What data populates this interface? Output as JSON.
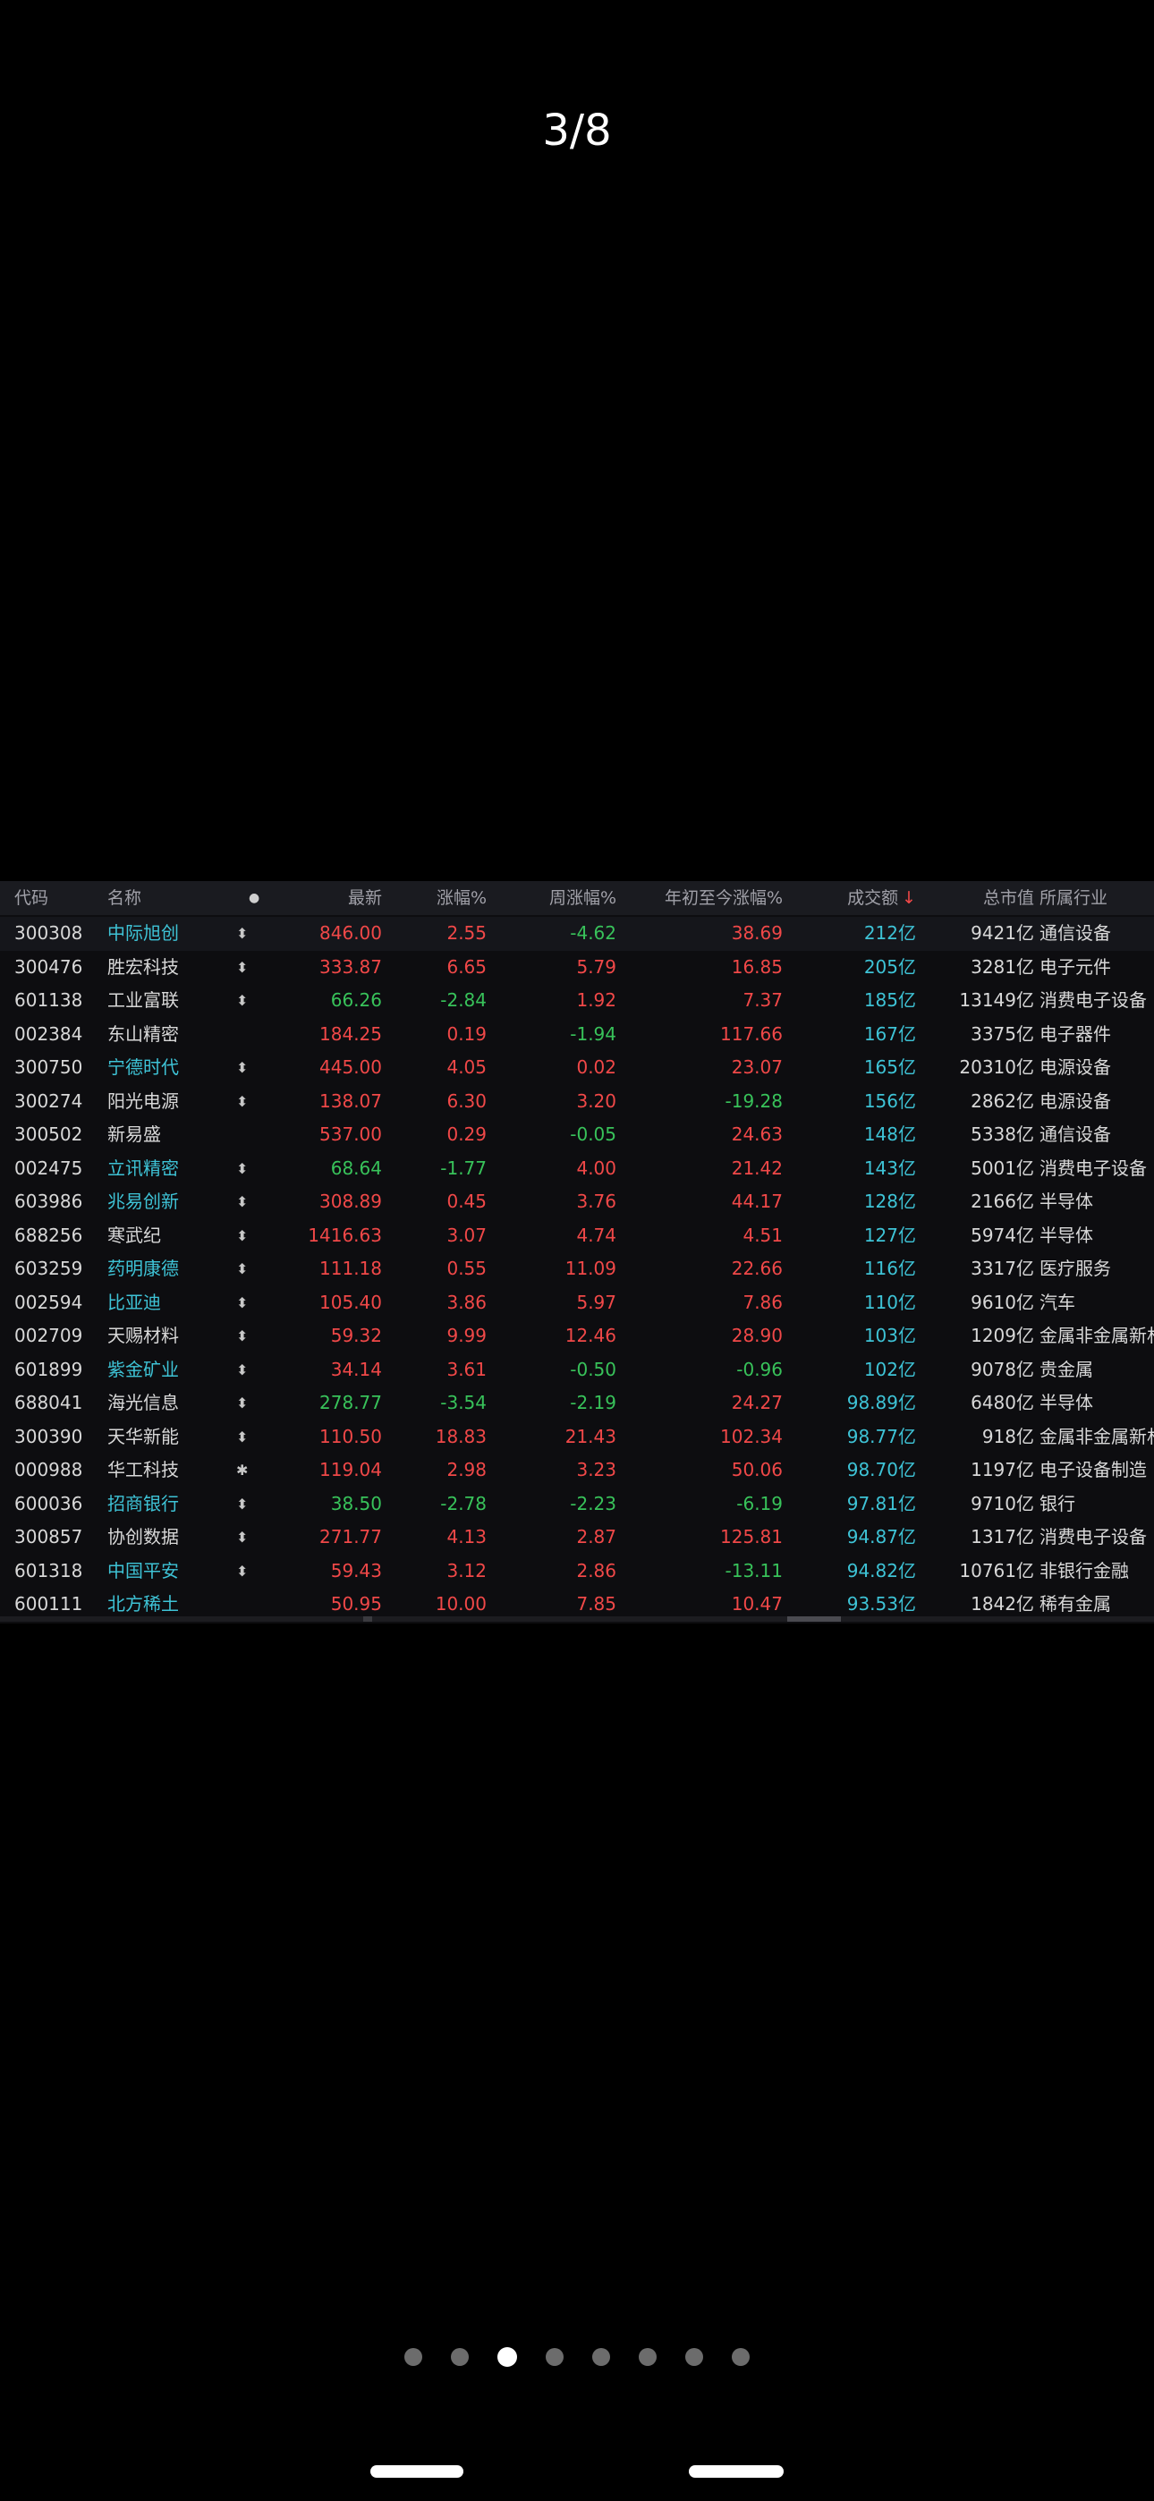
{
  "counter": "3/8",
  "table": {
    "headers": {
      "code": "代码",
      "name": "名称",
      "dot": "●",
      "last": "最新",
      "chg": "涨幅%",
      "wk": "周涨幅%",
      "ytd": "年初至今涨幅%",
      "vol": "成交额",
      "vol_sort": "↓",
      "cap": "总市值",
      "ind": "所属行业"
    },
    "rows": [
      {
        "code": "300308",
        "name": "中际旭创",
        "hi": true,
        "flag": "⬍",
        "last": "846.00",
        "chg": "2.55",
        "wk": "-4.62",
        "ytd": "38.69",
        "vol": "212亿",
        "cap": "9421亿",
        "ind": "通信设备"
      },
      {
        "code": "300476",
        "name": "胜宏科技",
        "hi": false,
        "flag": "⬍",
        "last": "333.87",
        "chg": "6.65",
        "wk": "5.79",
        "ytd": "16.85",
        "vol": "205亿",
        "cap": "3281亿",
        "ind": "电子元件"
      },
      {
        "code": "601138",
        "name": "工业富联",
        "hi": false,
        "flag": "⬍",
        "last": "66.26",
        "chg": "-2.84",
        "wk": "1.92",
        "ytd": "7.37",
        "vol": "185亿",
        "cap": "13149亿",
        "ind": "消费电子设备"
      },
      {
        "code": "002384",
        "name": "东山精密",
        "hi": false,
        "flag": "",
        "last": "184.25",
        "chg": "0.19",
        "wk": "-1.94",
        "ytd": "117.66",
        "vol": "167亿",
        "cap": "3375亿",
        "ind": "电子器件"
      },
      {
        "code": "300750",
        "name": "宁德时代",
        "hi": true,
        "flag": "⬍",
        "last": "445.00",
        "chg": "4.05",
        "wk": "0.02",
        "ytd": "23.07",
        "vol": "165亿",
        "cap": "20310亿",
        "ind": "电源设备"
      },
      {
        "code": "300274",
        "name": "阳光电源",
        "hi": false,
        "flag": "⬍",
        "last": "138.07",
        "chg": "6.30",
        "wk": "3.20",
        "ytd": "-19.28",
        "vol": "156亿",
        "cap": "2862亿",
        "ind": "电源设备"
      },
      {
        "code": "300502",
        "name": "新易盛",
        "hi": false,
        "flag": "",
        "last": "537.00",
        "chg": "0.29",
        "wk": "-0.05",
        "ytd": "24.63",
        "vol": "148亿",
        "cap": "5338亿",
        "ind": "通信设备"
      },
      {
        "code": "002475",
        "name": "立讯精密",
        "hi": true,
        "flag": "⬍",
        "last": "68.64",
        "chg": "-1.77",
        "wk": "4.00",
        "ytd": "21.42",
        "vol": "143亿",
        "cap": "5001亿",
        "ind": "消费电子设备"
      },
      {
        "code": "603986",
        "name": "兆易创新",
        "hi": true,
        "flag": "⬍",
        "last": "308.89",
        "chg": "0.45",
        "wk": "3.76",
        "ytd": "44.17",
        "vol": "128亿",
        "cap": "2166亿",
        "ind": "半导体"
      },
      {
        "code": "688256",
        "name": "寒武纪",
        "hi": false,
        "flag": "⬍",
        "last": "1416.63",
        "chg": "3.07",
        "wk": "4.74",
        "ytd": "4.51",
        "vol": "127亿",
        "cap": "5974亿",
        "ind": "半导体"
      },
      {
        "code": "603259",
        "name": "药明康德",
        "hi": true,
        "flag": "⬍",
        "last": "111.18",
        "chg": "0.55",
        "wk": "11.09",
        "ytd": "22.66",
        "vol": "116亿",
        "cap": "3317亿",
        "ind": "医疗服务"
      },
      {
        "code": "002594",
        "name": "比亚迪",
        "hi": true,
        "flag": "⬍",
        "last": "105.40",
        "chg": "3.86",
        "wk": "5.97",
        "ytd": "7.86",
        "vol": "110亿",
        "cap": "9610亿",
        "ind": "汽车"
      },
      {
        "code": "002709",
        "name": "天赐材料",
        "hi": false,
        "flag": "⬍",
        "last": "59.32",
        "chg": "9.99",
        "wk": "12.46",
        "ytd": "28.90",
        "vol": "103亿",
        "cap": "1209亿",
        "ind": "金属非金属新材"
      },
      {
        "code": "601899",
        "name": "紫金矿业",
        "hi": true,
        "flag": "⬍",
        "last": "34.14",
        "chg": "3.61",
        "wk": "-0.50",
        "ytd": "-0.96",
        "vol": "102亿",
        "cap": "9078亿",
        "ind": "贵金属"
      },
      {
        "code": "688041",
        "name": "海光信息",
        "hi": false,
        "flag": "⬍",
        "last": "278.77",
        "chg": "-3.54",
        "wk": "-2.19",
        "ytd": "24.27",
        "vol": "98.89亿",
        "cap": "6480亿",
        "ind": "半导体"
      },
      {
        "code": "300390",
        "name": "天华新能",
        "hi": false,
        "flag": "⬍",
        "last": "110.50",
        "chg": "18.83",
        "wk": "21.43",
        "ytd": "102.34",
        "vol": "98.77亿",
        "cap": "918亿",
        "ind": "金属非金属新材"
      },
      {
        "code": "000988",
        "name": "华工科技",
        "hi": false,
        "flag": "✱",
        "last": "119.04",
        "chg": "2.98",
        "wk": "3.23",
        "ytd": "50.06",
        "vol": "98.70亿",
        "cap": "1197亿",
        "ind": "电子设备制造"
      },
      {
        "code": "600036",
        "name": "招商银行",
        "hi": true,
        "flag": "⬍",
        "last": "38.50",
        "chg": "-2.78",
        "wk": "-2.23",
        "ytd": "-6.19",
        "vol": "97.81亿",
        "cap": "9710亿",
        "ind": "银行"
      },
      {
        "code": "300857",
        "name": "协创数据",
        "hi": false,
        "flag": "⬍",
        "last": "271.77",
        "chg": "4.13",
        "wk": "2.87",
        "ytd": "125.81",
        "vol": "94.87亿",
        "cap": "1317亿",
        "ind": "消费电子设备"
      },
      {
        "code": "601318",
        "name": "中国平安",
        "hi": true,
        "flag": "⬍",
        "last": "59.43",
        "chg": "3.12",
        "wk": "2.86",
        "ytd": "-13.11",
        "vol": "94.82亿",
        "cap": "10761亿",
        "ind": "非银行金融"
      },
      {
        "code": "600111",
        "name": "北方稀土",
        "hi": true,
        "flag": "",
        "last": "50.95",
        "chg": "10.00",
        "wk": "7.85",
        "ytd": "10.47",
        "vol": "93.53亿",
        "cap": "1842亿",
        "ind": "稀有金属"
      }
    ]
  },
  "pager": {
    "count": 8,
    "active": 2
  },
  "colors": {
    "up": "#f04848",
    "down": "#38c25a",
    "accent": "#3ec3d6",
    "background": "#000000"
  }
}
